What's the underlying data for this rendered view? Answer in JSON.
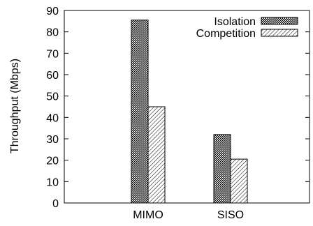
{
  "chart_data": {
    "type": "bar",
    "categories": [
      "MIMO",
      "SISO"
    ],
    "series": [
      {
        "name": "Isolation",
        "values": [
          85.5,
          32
        ],
        "pattern": "dense-checker"
      },
      {
        "name": "Competition",
        "values": [
          45,
          20.5
        ],
        "pattern": "diagonal-hatch"
      }
    ],
    "title": "",
    "xlabel": "",
    "ylabel": "Throughput (Mbps)",
    "ylim": [
      0,
      90
    ],
    "yticks": [
      0,
      10,
      20,
      30,
      40,
      50,
      60,
      70,
      80,
      90
    ],
    "grid": false,
    "legend_position": "top-right",
    "colors": {
      "axis": "#000000",
      "bar_fill": "#ffffff"
    }
  }
}
